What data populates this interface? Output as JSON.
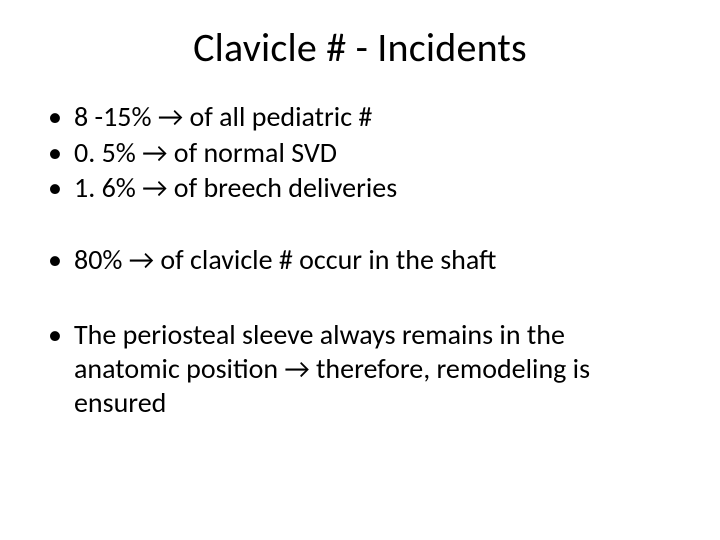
{
  "slide": {
    "title": "Clavicle # - Incidents",
    "bullets_group1": [
      "8 -15% → of all pediatric #",
      "0. 5% → of normal SVD",
      "1. 6% → of breech deliveries"
    ],
    "bullets_group2": [
      "80% → of clavicle # occur in the shaft"
    ],
    "bullets_group3": [
      "The periosteal sleeve always remains in the anatomic position → therefore, remodeling is ensured"
    ],
    "title_fontsize": 40,
    "body_fontsize": 28,
    "background_color": "#ffffff",
    "text_color": "#000000"
  }
}
